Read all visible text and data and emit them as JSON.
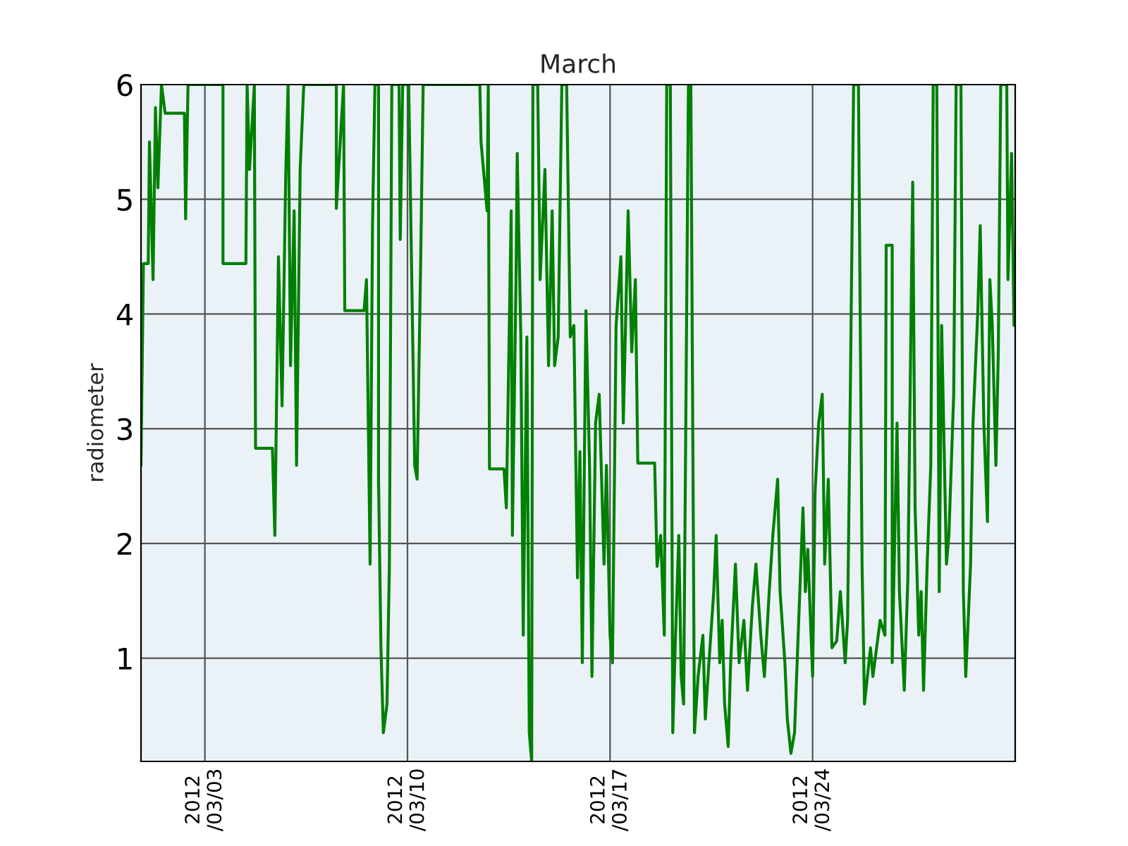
{
  "chart_data": {
    "type": "line",
    "title": "March",
    "ylabel": "radiometer",
    "xlim": [
      "2012-02-29T19:00",
      "2012-03-31T00:00"
    ],
    "xticks": [
      {
        "value": "2012-03-03",
        "label": "2012\n/03/03"
      },
      {
        "value": "2012-03-10",
        "label": "2012\n/03/10"
      },
      {
        "value": "2012-03-17",
        "label": "2012\n/03/17"
      },
      {
        "value": "2012-03-24",
        "label": "2012\n/03/24"
      }
    ],
    "ylim": [
      0.1,
      6
    ],
    "yticks": [
      1,
      2,
      3,
      4,
      5,
      6
    ],
    "grid": true,
    "series": [
      {
        "color": "#008000",
        "x": [
          "2012-02-29T19:00",
          "2012-02-29T21:00",
          "2012-03-01T01:00",
          "2012-03-01T02:00",
          "2012-03-01T05:00",
          "2012-03-01T07:00",
          "2012-03-01T09:00",
          "2012-03-01T12:00",
          "2012-03-01T15:00",
          "2012-03-02T07:00",
          "2012-03-02T08:00",
          "2012-03-02T10:00",
          "2012-03-03T15:00",
          "2012-03-03T15:00",
          "2012-03-04T10:00",
          "2012-03-04T11:00",
          "2012-03-04T13:00",
          "2012-03-04T17:00",
          "2012-03-04T18:00",
          "2012-03-05T08:00",
          "2012-03-05T10:00",
          "2012-03-05T13:00",
          "2012-03-05T16:00",
          "2012-03-05T19:00",
          "2012-03-05T21:00",
          "2012-03-05T23:00",
          "2012-03-06T02:00",
          "2012-03-06T04:00",
          "2012-03-06T07:00",
          "2012-03-06T10:00",
          "2012-03-06T14:00",
          "2012-03-07T13:00",
          "2012-03-07T13:00",
          "2012-03-07T19:00",
          "2012-03-07T20:00",
          "2012-03-08T12:00",
          "2012-03-08T14:00",
          "2012-03-08T17:00",
          "2012-03-08T19:00",
          "2012-03-08T21:00",
          "2012-03-09T00:00",
          "2012-03-09T00:00",
          "2012-03-09T02:00",
          "2012-03-09T04:00",
          "2012-03-09T07:00",
          "2012-03-09T09:00",
          "2012-03-09T11:00",
          "2012-03-09T17:00",
          "2012-03-09T18:00",
          "2012-03-09T20:00",
          "2012-03-10T01:00",
          "2012-03-10T06:00",
          "2012-03-10T08:00",
          "2012-03-10T11:00",
          "2012-03-10T13:00",
          "2012-03-12T12:00",
          "2012-03-12T13:00",
          "2012-03-12T18:00",
          "2012-03-12T19:00",
          "2012-03-12T20:00",
          "2012-03-13T08:00",
          "2012-03-13T10:00",
          "2012-03-13T14:00",
          "2012-03-13T15:00",
          "2012-03-13T18:00",
          "2012-03-13T19:00",
          "2012-03-13T22:00",
          "2012-03-14T00:00",
          "2012-03-14T03:00",
          "2012-03-14T05:00",
          "2012-03-14T07:00",
          "2012-03-14T08:00",
          "2012-03-14T12:00",
          "2012-03-14T14:00",
          "2012-03-14T18:00",
          "2012-03-14T21:00",
          "2012-03-15T00:00",
          "2012-03-15T02:00",
          "2012-03-15T05:00",
          "2012-03-15T08:00",
          "2012-03-15T12:00",
          "2012-03-15T15:00",
          "2012-03-15T18:00",
          "2012-03-15T21:00",
          "2012-03-15T23:00",
          "2012-03-16T01:00",
          "2012-03-16T04:00",
          "2012-03-16T07:00",
          "2012-03-16T09:00",
          "2012-03-16T12:00",
          "2012-03-16T15:00",
          "2012-03-16T19:00",
          "2012-03-16T21:00",
          "2012-03-17T00:00",
          "2012-03-17T02:00",
          "2012-03-17T05:00",
          "2012-03-17T09:00",
          "2012-03-17T11:00",
          "2012-03-17T15:00",
          "2012-03-17T18:00",
          "2012-03-17T21:00",
          "2012-03-17T23:00",
          "2012-03-18T13:00",
          "2012-03-18T15:00",
          "2012-03-18T18:00",
          "2012-03-18T21:00",
          "2012-03-18T23:00",
          "2012-03-19T02:00",
          "2012-03-19T04:00",
          "2012-03-19T06:00",
          "2012-03-19T09:00",
          "2012-03-19T11:00",
          "2012-03-19T13:00",
          "2012-03-19T17:00",
          "2012-03-19T19:00",
          "2012-03-19T22:00",
          "2012-03-20T01:00",
          "2012-03-20T05:00",
          "2012-03-20T07:00",
          "2012-03-20T10:00",
          "2012-03-20T14:00",
          "2012-03-20T16:00",
          "2012-03-20T19:00",
          "2012-03-20T21:00",
          "2012-03-20T23:00",
          "2012-03-21T02:00",
          "2012-03-21T04:00",
          "2012-03-21T08:00",
          "2012-03-21T11:00",
          "2012-03-21T15:00",
          "2012-03-21T18:00",
          "2012-03-21T22:00",
          "2012-03-22T01:00",
          "2012-03-22T05:00",
          "2012-03-22T08:00",
          "2012-03-22T12:00",
          "2012-03-22T15:00",
          "2012-03-22T19:00",
          "2012-03-22T21:00",
          "2012-03-23T01:00",
          "2012-03-23T03:00",
          "2012-03-23T06:00",
          "2012-03-23T09:00",
          "2012-03-23T12:00",
          "2012-03-23T16:00",
          "2012-03-23T18:00",
          "2012-03-23T20:00",
          "2012-03-24T00:00",
          "2012-03-24T02:00",
          "2012-03-24T05:00",
          "2012-03-24T08:00",
          "2012-03-24T10:00",
          "2012-03-24T13:00",
          "2012-03-24T16:00",
          "2012-03-24T20:00",
          "2012-03-24T23:00",
          "2012-03-25T03:00",
          "2012-03-25T05:00",
          "2012-03-25T07:00",
          "2012-03-25T10:00",
          "2012-03-25T14:00",
          "2012-03-25T17:00",
          "2012-03-25T19:00",
          "2012-03-26T00:00",
          "2012-03-26T02:00",
          "2012-03-26T08:00",
          "2012-03-26T12:00",
          "2012-03-26T13:00",
          "2012-03-26T18:00",
          "2012-03-26T18:00",
          "2012-03-26T22:00",
          "2012-03-27T00:00",
          "2012-03-27T04:00",
          "2012-03-27T07:00",
          "2012-03-27T11:00",
          "2012-03-27T13:00",
          "2012-03-27T16:00",
          "2012-03-27T18:00",
          "2012-03-27T20:00",
          "2012-03-27T23:00",
          "2012-03-28T02:00",
          "2012-03-28T04:00",
          "2012-03-28T07:00",
          "2012-03-28T09:00",
          "2012-03-28T11:00",
          "2012-03-28T15:00",
          "2012-03-28T17:00",
          "2012-03-28T21:00",
          "2012-03-28T23:00",
          "2012-03-29T03:00",
          "2012-03-29T05:00",
          "2012-03-29T07:00",
          "2012-03-29T11:00",
          "2012-03-29T13:00",
          "2012-03-29T17:00",
          "2012-03-29T19:00",
          "2012-03-29T22:00",
          "2012-03-30T01:00",
          "2012-03-30T03:00",
          "2012-03-30T05:00",
          "2012-03-30T08:00",
          "2012-03-30T10:00",
          "2012-03-30T12:00",
          "2012-03-30T17:00",
          "2012-03-30T18:00",
          "2012-03-30T21:00",
          "2012-03-30T23:00"
        ],
        "values": [
          2.68,
          4.44,
          4.44,
          5.5,
          4.3,
          5.8,
          5.1,
          6,
          5.75,
          5.75,
          4.83,
          6,
          6,
          4.44,
          4.44,
          6,
          5.26,
          6,
          2.83,
          2.83,
          2.07,
          4.5,
          3.2,
          5.2,
          6,
          3.55,
          4.9,
          2.68,
          5.26,
          6,
          6,
          6,
          4.92,
          6,
          4.03,
          4.03,
          4.3,
          1.82,
          4.77,
          6,
          6,
          2.56,
          1.09,
          0.35,
          0.6,
          1.82,
          6,
          6,
          4.65,
          6,
          6,
          2.68,
          2.56,
          4.5,
          6,
          6,
          5.5,
          4.9,
          6,
          2.65,
          2.65,
          2.31,
          4.9,
          2.07,
          4.3,
          5.4,
          3.8,
          1.2,
          3.8,
          0.35,
          0.1,
          6,
          6,
          4.3,
          5.26,
          3.55,
          4.9,
          3.55,
          3.8,
          6,
          6,
          3.8,
          3.9,
          1.7,
          2.8,
          0.96,
          4.03,
          2.68,
          0.84,
          3.05,
          3.3,
          1.82,
          2.68,
          1.2,
          0.96,
          3.9,
          4.5,
          3.05,
          4.9,
          3.67,
          4.3,
          2.7,
          2.7,
          1.8,
          2.07,
          1.2,
          6,
          6,
          0.35,
          1.09,
          2.07,
          0.84,
          0.6,
          6,
          6,
          0.35,
          0.84,
          1.2,
          0.47,
          0.96,
          1.58,
          2.07,
          0.96,
          1.33,
          0.6,
          0.23,
          0.96,
          1.82,
          0.96,
          1.33,
          0.72,
          1.45,
          1.82,
          1.2,
          0.84,
          1.58,
          2.07,
          2.56,
          1.58,
          0.96,
          0.47,
          0.17,
          0.35,
          1.2,
          2.31,
          1.58,
          1.95,
          0.84,
          2.44,
          3.05,
          3.3,
          1.82,
          2.56,
          1.09,
          1.15,
          1.58,
          0.96,
          1.33,
          3.05,
          6,
          6,
          1.82,
          0.6,
          1.09,
          0.84,
          1.33,
          1.2,
          4.6,
          4.6,
          0.96,
          3.05,
          1.58,
          0.72,
          1.7,
          5.15,
          2.31,
          1.2,
          1.58,
          0.72,
          1.82,
          2.68,
          6,
          6,
          1.58,
          3.9,
          1.82,
          2.07,
          3.3,
          6,
          6,
          1.58,
          0.84,
          1.82,
          3.05,
          4.03,
          4.77,
          3.05,
          2.19,
          4.3,
          3.9,
          2.68,
          3.67,
          6,
          6,
          4.3,
          5.4,
          3.9
        ]
      }
    ]
  }
}
